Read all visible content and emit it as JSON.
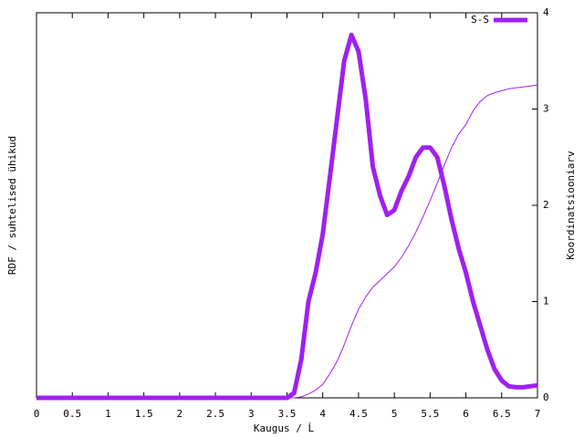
{
  "chart_data": {
    "type": "line",
    "xlabel": "Kaugus / Ĺ",
    "ylabel": "RDF / suhtelised ühikud",
    "y2label": "Koordinatsiooniarv",
    "x": [
      0,
      0.1,
      0.2,
      0.3,
      0.4,
      0.5,
      0.6,
      0.7,
      0.8,
      0.9,
      1.0,
      1.1,
      1.2,
      1.3,
      1.4,
      1.5,
      1.6,
      1.7,
      1.8,
      1.9,
      2.0,
      2.1,
      2.2,
      2.3,
      2.4,
      2.5,
      2.6,
      2.7,
      2.8,
      2.9,
      3.0,
      3.1,
      3.2,
      3.3,
      3.4,
      3.5,
      3.6,
      3.7,
      3.8,
      3.9,
      4.0,
      4.1,
      4.2,
      4.3,
      4.4,
      4.5,
      4.6,
      4.7,
      4.8,
      4.9,
      5.0,
      5.1,
      5.2,
      5.3,
      5.4,
      5.5,
      5.6,
      5.7,
      5.8,
      5.9,
      6.0,
      6.1,
      6.2,
      6.3,
      6.4,
      6.5,
      6.6,
      6.7,
      6.8,
      6.9,
      7.0
    ],
    "series": [
      {
        "name": "S-S",
        "color": "#a020f0",
        "values": [
          0,
          0,
          0,
          0,
          0,
          0,
          0,
          0,
          0,
          0,
          0,
          0,
          0,
          0,
          0,
          0,
          0,
          0,
          0,
          0,
          0,
          0,
          0,
          0,
          0,
          0,
          0,
          0,
          0,
          0,
          0,
          0,
          0,
          0,
          0,
          0,
          0.05,
          0.4,
          1.0,
          1.3,
          1.7,
          2.3,
          2.9,
          3.5,
          3.77,
          3.6,
          3.1,
          2.4,
          2.1,
          1.9,
          1.95,
          2.15,
          2.3,
          2.5,
          2.6,
          2.6,
          2.5,
          2.2,
          1.85,
          1.55,
          1.3,
          1.0,
          0.75,
          0.5,
          0.3,
          0.18,
          0.12,
          0.11,
          0.11,
          0.12,
          0.13
        ]
      },
      {
        "color": "#a020f0",
        "axis": "y2",
        "values": [
          0,
          0,
          0,
          0,
          0,
          0,
          0,
          0,
          0,
          0,
          0,
          0,
          0,
          0,
          0,
          0,
          0,
          0,
          0,
          0,
          0,
          0,
          0,
          0,
          0,
          0,
          0,
          0,
          0,
          0,
          0,
          0,
          0,
          0,
          0,
          0,
          0,
          0.01,
          0.04,
          0.08,
          0.14,
          0.25,
          0.38,
          0.55,
          0.75,
          0.92,
          1.05,
          1.15,
          1.22,
          1.29,
          1.36,
          1.46,
          1.58,
          1.72,
          1.88,
          2.05,
          2.23,
          2.42,
          2.6,
          2.74,
          2.84,
          2.98,
          3.08,
          3.14,
          3.17,
          3.19,
          3.21,
          3.22,
          3.23,
          3.24,
          3.25
        ]
      }
    ],
    "xlim": [
      0,
      7
    ],
    "xticks": [
      0,
      0.5,
      1,
      1.5,
      2,
      2.5,
      3,
      3.5,
      4,
      4.5,
      5,
      5.5,
      6,
      6.5,
      7
    ],
    "ylim": [
      0,
      4
    ],
    "y2lim": [
      0,
      4
    ],
    "y2ticks": [
      0,
      1,
      2,
      3,
      4
    ],
    "legend": "top-right"
  }
}
